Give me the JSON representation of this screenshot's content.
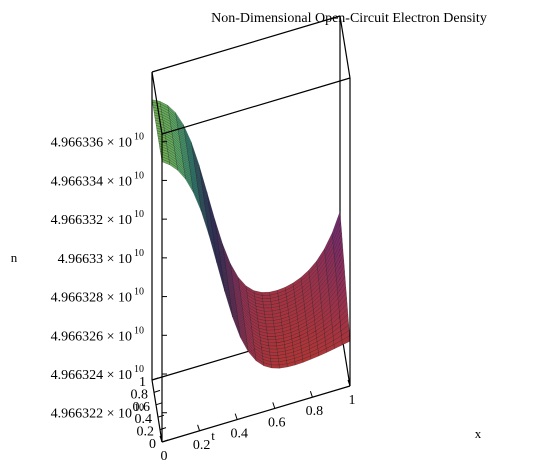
{
  "chart_data": {
    "type": "surface3d",
    "title": "Non-Dimensional Open-Circuit Electron Density",
    "zlabel": "n",
    "tlabel": "t",
    "xlabel": "x",
    "z_ticks": [
      {
        "label": "4.966336",
        "exp": "10",
        "value": 49663360000.0
      },
      {
        "label": "4.966334",
        "exp": "10",
        "value": 49663340000.0
      },
      {
        "label": "4.966332",
        "exp": "10",
        "value": 49663320000.0
      },
      {
        "label": "4.96633",
        "exp": "10",
        "value": 49663300000.0
      },
      {
        "label": "4.966328",
        "exp": "10",
        "value": 49663280000.0
      },
      {
        "label": "4.966326",
        "exp": "10",
        "value": 49663260000.0
      },
      {
        "label": "4.966324",
        "exp": "10",
        "value": 49663240000.0
      },
      {
        "label": "4.966322",
        "exp": "10",
        "value": 49663220000.0
      }
    ],
    "t_ticks": [
      "1",
      "0.8",
      "0.6",
      "0.4",
      "0.2",
      "0"
    ],
    "x_ticks": [
      "0",
      "0.2",
      "0.4",
      "0.6",
      "0.8",
      "1"
    ],
    "t_range": [
      0,
      1
    ],
    "x_range": [
      0,
      1
    ],
    "z_range": [
      49663220000.0,
      49663360000.0
    ],
    "colormap": [
      "#b8362e",
      "#7a2a6b",
      "#3b3bb3",
      "#2e9a8a",
      "#8ab83a"
    ],
    "grid": false,
    "legend": "none"
  }
}
